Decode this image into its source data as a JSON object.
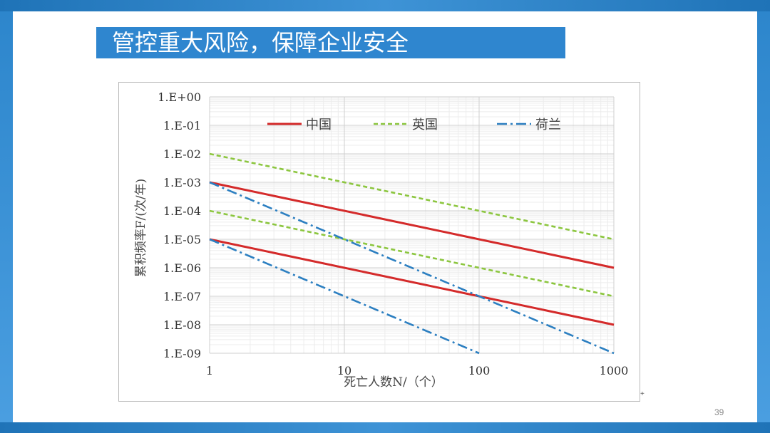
{
  "slide": {
    "title": "管控重大风险，保障企业安全",
    "page_number": "39",
    "mark": "+"
  },
  "colors": {
    "band_blue": "#2f86cf",
    "china_red": "#d42a2a",
    "uk_green": "#8cc63f",
    "netherlands_blue": "#2c7fc1"
  },
  "chart_data": {
    "type": "line",
    "xscale": "log",
    "yscale": "log",
    "grid": true,
    "legend_position": "top",
    "xlabel": "死亡人数N/（个）",
    "ylabel": "累积频率F/(次/年)",
    "xlim": [
      1,
      1000
    ],
    "ylim": [
      1e-09,
      1
    ],
    "x_ticks": [
      "1",
      "10",
      "100",
      "1000"
    ],
    "y_ticks": [
      "1.E+00",
      "1.E-01",
      "1.E-02",
      "1.E-03",
      "1.E-04",
      "1.E-05",
      "1.E-06",
      "1.E-07",
      "1.E-08",
      "1.E-09"
    ],
    "legend": [
      {
        "name": "中国",
        "style": "solid",
        "color": "#d42a2a"
      },
      {
        "name": "英国",
        "style": "dashed",
        "color": "#8cc63f"
      },
      {
        "name": "荷兰",
        "style": "dashdot",
        "color": "#2c7fc1"
      }
    ],
    "series": [
      {
        "legend": "中国",
        "x": [
          1,
          1000
        ],
        "y": [
          0.001,
          1e-06
        ],
        "style": "solid",
        "color": "#d42a2a"
      },
      {
        "legend": "中国",
        "x": [
          1,
          1000
        ],
        "y": [
          1e-05,
          1e-08
        ],
        "style": "solid",
        "color": "#d42a2a"
      },
      {
        "legend": "英国",
        "x": [
          1,
          1000
        ],
        "y": [
          0.01,
          1e-05
        ],
        "style": "dashed",
        "color": "#8cc63f"
      },
      {
        "legend": "英国",
        "x": [
          1,
          1000
        ],
        "y": [
          0.0001,
          1e-07
        ],
        "style": "dashed",
        "color": "#8cc63f"
      },
      {
        "legend": "荷兰",
        "x": [
          1,
          1000
        ],
        "y": [
          0.001,
          1e-09
        ],
        "style": "dashdot",
        "color": "#2c7fc1"
      },
      {
        "legend": "荷兰",
        "x": [
          1,
          100
        ],
        "y": [
          1e-05,
          1e-09
        ],
        "style": "dashdot",
        "color": "#2c7fc1"
      }
    ]
  }
}
